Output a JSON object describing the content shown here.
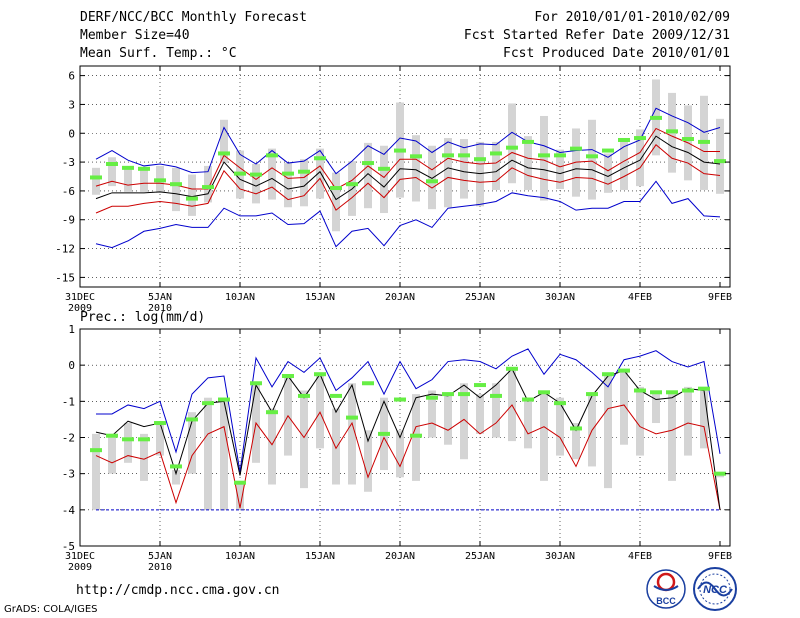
{
  "header": {
    "title": "DERF/NCC/BCC Monthly Forecast",
    "members": "Member Size=40",
    "variable1": "Mean Surf. Temp.: °C",
    "period": "For 2010/01/01-2010/02/09",
    "started": "Fcst Started Refer Date 2009/12/31",
    "produced": "Fcst Produced Date 2010/01/01"
  },
  "footer": {
    "url": "http://cmdp.ncc.cma.gov.cn",
    "credit": "GrADS: COLA/IGES",
    "logo_left": "BCC",
    "logo_right": "NCC"
  },
  "colors": {
    "max": "#0000cc",
    "p75": "#cc0000",
    "median": "#000000",
    "ensemble_box": "#d4d4d4",
    "observed": "#66ee44"
  },
  "chart_data": [
    {
      "type": "line",
      "title": "Mean Surf. Temp.: °C",
      "x_tick_labels": [
        "31DEC",
        "5JAN",
        "10JAN",
        "15JAN",
        "20JAN",
        "25JAN",
        "30JAN",
        "4FEB",
        "9FEB"
      ],
      "x_tick_sublabels": [
        "2009",
        "2010",
        "",
        "",
        "",
        "",
        "",
        "",
        ""
      ],
      "x_tick_index": [
        0,
        5,
        10,
        15,
        20,
        25,
        30,
        35,
        40
      ],
      "ylim": [
        -16,
        7
      ],
      "yticks": [
        6,
        3,
        0,
        -3,
        -6,
        -9,
        -12,
        -15
      ],
      "x": [
        1,
        2,
        3,
        4,
        5,
        6,
        7,
        8,
        9,
        10,
        11,
        12,
        13,
        14,
        15,
        16,
        17,
        18,
        19,
        20,
        21,
        22,
        23,
        24,
        25,
        26,
        27,
        28,
        29,
        30,
        31,
        32,
        33,
        34,
        35,
        36,
        37,
        38,
        39,
        40
      ],
      "series": [
        {
          "name": "max",
          "values": [
            -2.7,
            -1.8,
            -2.8,
            -3.4,
            -3.2,
            -3.5,
            -4.1,
            -4.0,
            0.6,
            -2.2,
            -3.2,
            -1.8,
            -3.1,
            -2.9,
            -1.8,
            -4.2,
            -2.9,
            -1.3,
            -2.2,
            -0.5,
            -0.8,
            -2.0,
            -0.9,
            -1.5,
            -1.1,
            -1.2,
            0.1,
            -0.9,
            -1.3,
            -2.0,
            -1.8,
            -1.7,
            -2.5,
            -1.4,
            -0.7,
            2.6,
            1.8,
            1.1,
            0.1,
            0.6
          ]
        },
        {
          "name": "p75",
          "values": [
            -5.5,
            -5.0,
            -5.4,
            -5.2,
            -5.2,
            -5.4,
            -5.8,
            -5.8,
            -2.3,
            -3.6,
            -4.8,
            -3.6,
            -4.7,
            -4.6,
            -3.4,
            -5.8,
            -4.9,
            -3.4,
            -4.6,
            -2.7,
            -2.7,
            -3.8,
            -2.6,
            -3.0,
            -3.2,
            -3.1,
            -2.0,
            -2.6,
            -2.8,
            -3.5,
            -3.0,
            -2.9,
            -3.9,
            -2.9,
            -2.0,
            0.5,
            -0.3,
            -1.0,
            -1.9,
            -1.9
          ]
        },
        {
          "name": "median",
          "values": [
            -6.8,
            -6.2,
            -6.2,
            -6.2,
            -6.1,
            -6.3,
            -6.6,
            -6.3,
            -3.0,
            -4.8,
            -5.5,
            -4.7,
            -5.8,
            -5.5,
            -4.0,
            -6.9,
            -5.8,
            -4.2,
            -5.6,
            -3.7,
            -3.8,
            -4.7,
            -3.6,
            -4.0,
            -4.2,
            -4.0,
            -2.8,
            -3.6,
            -3.8,
            -4.2,
            -3.7,
            -3.8,
            -4.5,
            -3.6,
            -2.8,
            -0.3,
            -1.4,
            -2.0,
            -3.0,
            -3.2
          ]
        },
        {
          "name": "p25",
          "values": [
            -8.3,
            -7.6,
            -7.6,
            -7.3,
            -7.1,
            -7.3,
            -7.6,
            -7.3,
            -3.9,
            -5.8,
            -6.3,
            -5.6,
            -6.9,
            -6.5,
            -4.7,
            -8.0,
            -6.7,
            -5.2,
            -6.7,
            -4.8,
            -4.6,
            -5.7,
            -4.6,
            -4.9,
            -5.1,
            -5.0,
            -3.6,
            -4.4,
            -4.8,
            -5.1,
            -4.6,
            -4.7,
            -5.3,
            -4.5,
            -3.6,
            -1.2,
            -2.6,
            -3.1,
            -4.2,
            -4.4
          ]
        },
        {
          "name": "min",
          "values": [
            -11.5,
            -11.9,
            -11.2,
            -10.2,
            -9.9,
            -9.5,
            -9.8,
            -9.8,
            -7.8,
            -8.6,
            -8.6,
            -8.3,
            -9.5,
            -9.4,
            -8.1,
            -11.8,
            -10.2,
            -9.9,
            -11.7,
            -9.6,
            -9.0,
            -9.8,
            -7.8,
            -7.6,
            -7.4,
            -7.1,
            -6.2,
            -6.5,
            -6.7,
            -7.1,
            -8.0,
            -7.8,
            -7.8,
            -7.1,
            -7.1,
            -5.0,
            -7.3,
            -6.8,
            -8.6,
            -8.7
          ]
        },
        {
          "name": "box_high",
          "values": [
            -3.6,
            -2.5,
            -3.7,
            -3.6,
            -3.4,
            -3.6,
            -4.3,
            -3.4,
            1.4,
            -1.8,
            -3.2,
            -1.6,
            -3.1,
            -2.7,
            -1.6,
            -4.1,
            -2.9,
            -1.0,
            -1.3,
            3.2,
            -0.2,
            -1.3,
            -0.5,
            -0.6,
            -0.9,
            -0.9,
            3.1,
            -0.3,
            1.8,
            -1.7,
            0.5,
            1.4,
            -2.1,
            -0.6,
            0.4,
            5.6,
            4.2,
            2.9,
            3.9,
            1.5
          ]
        },
        {
          "name": "box_low",
          "values": [
            -6.4,
            -5.5,
            -6.1,
            -6.1,
            -6.2,
            -8.1,
            -8.6,
            -7.2,
            -3.1,
            -6.8,
            -7.3,
            -6.9,
            -7.7,
            -7.6,
            -6.8,
            -10.2,
            -8.6,
            -7.8,
            -8.3,
            -6.7,
            -7.1,
            -7.9,
            -7.7,
            -6.8,
            -7.6,
            -5.9,
            -5.2,
            -5.9,
            -7.0,
            -5.8,
            -6.6,
            -6.9,
            -6.2,
            -5.9,
            -5.5,
            -2.3,
            -4.1,
            -4.9,
            -5.9,
            -6.3
          ]
        },
        {
          "name": "observed",
          "values": [
            -4.6,
            -3.2,
            -3.6,
            -3.7,
            -4.9,
            -5.3,
            -6.8,
            -5.6,
            -2.1,
            -4.2,
            -4.3,
            -2.3,
            -4.2,
            -4.0,
            -2.6,
            -5.7,
            -5.3,
            -3.1,
            -3.7,
            -1.8,
            -2.4,
            -5.0,
            -2.3,
            -2.3,
            -2.7,
            -2.1,
            -1.5,
            -0.9,
            -2.3,
            -2.3,
            -1.6,
            -2.4,
            -1.8,
            -0.7,
            -0.5,
            1.6,
            0.2,
            -0.6,
            -0.9,
            -2.9
          ]
        }
      ]
    },
    {
      "type": "line",
      "title": "Prec.: log(mm/d)",
      "x_tick_labels": [
        "31DEC",
        "5JAN",
        "10JAN",
        "15JAN",
        "20JAN",
        "25JAN",
        "30JAN",
        "4FEB",
        "9FEB"
      ],
      "x_tick_sublabels": [
        "2009",
        "2010",
        "",
        "",
        "",
        "",
        "",
        "",
        ""
      ],
      "x_tick_index": [
        0,
        5,
        10,
        15,
        20,
        25,
        30,
        35,
        40
      ],
      "ylim": [
        -5,
        1
      ],
      "yticks": [
        1,
        0,
        -1,
        -2,
        -3,
        -4,
        -5
      ],
      "x": [
        1,
        2,
        3,
        4,
        5,
        6,
        7,
        8,
        9,
        10,
        11,
        12,
        13,
        14,
        15,
        16,
        17,
        18,
        19,
        20,
        21,
        22,
        23,
        24,
        25,
        26,
        27,
        28,
        29,
        30,
        31,
        32,
        33,
        34,
        35,
        36,
        37,
        38,
        39,
        40
      ],
      "series": [
        {
          "name": "max",
          "values": [
            -1.35,
            -1.35,
            -1.1,
            -1.2,
            -1.0,
            -2.4,
            -0.8,
            -0.35,
            -0.3,
            -2.95,
            0.2,
            -0.6,
            0.1,
            -0.2,
            0.2,
            -0.7,
            -0.35,
            0.1,
            -0.8,
            0.1,
            -0.65,
            -0.4,
            0.1,
            0.15,
            0.1,
            -0.1,
            0.25,
            0.45,
            -0.25,
            0.3,
            0.15,
            -0.2,
            -0.6,
            0.15,
            0.25,
            0.4,
            0.1,
            -0.05,
            0.1,
            -2.45
          ]
        },
        {
          "name": "median",
          "values": [
            -1.85,
            -1.95,
            -1.55,
            -1.7,
            -1.6,
            -3.0,
            -1.55,
            -1.05,
            -1.0,
            -3.05,
            -0.55,
            -1.3,
            -0.3,
            -0.9,
            -0.25,
            -1.3,
            -0.55,
            -2.1,
            -1.0,
            -2.0,
            -0.9,
            -0.8,
            -0.85,
            -0.55,
            -0.9,
            -0.55,
            -0.1,
            -1.0,
            -0.75,
            -1.05,
            -1.8,
            -0.85,
            -0.3,
            -0.15,
            -0.7,
            -0.95,
            -0.9,
            -0.65,
            -0.7,
            -4.0
          ]
        },
        {
          "name": "p25",
          "values": [
            -2.5,
            -2.7,
            -2.5,
            -2.6,
            -2.4,
            -3.8,
            -2.5,
            -1.9,
            -1.7,
            -3.95,
            -1.6,
            -2.2,
            -1.4,
            -2.0,
            -1.3,
            -2.3,
            -1.6,
            -3.1,
            -2.0,
            -2.8,
            -1.7,
            -1.6,
            -1.8,
            -1.5,
            -1.9,
            -1.6,
            -1.1,
            -1.9,
            -1.7,
            -2.0,
            -2.8,
            -1.8,
            -1.2,
            -1.1,
            -1.7,
            -1.9,
            -1.8,
            -1.6,
            -1.7,
            -4.0
          ]
        },
        {
          "name": "box_high",
          "values": [
            -1.9,
            -2.0,
            -1.6,
            -1.9,
            -1.6,
            -2.9,
            -1.3,
            -0.9,
            -0.9,
            -3.3,
            -0.5,
            -1.2,
            -0.3,
            -0.7,
            -0.2,
            -1.2,
            -0.5,
            -1.8,
            -0.9,
            -1.8,
            -0.8,
            -0.7,
            -0.8,
            -0.5,
            -0.8,
            -0.5,
            -0.1,
            -0.9,
            -0.7,
            -0.9,
            -1.6,
            -0.8,
            -0.3,
            -0.2,
            -0.6,
            -0.8,
            -0.8,
            -0.6,
            -0.6,
            -3.0
          ]
        },
        {
          "name": "box_low",
          "values": [
            -4.0,
            -3.0,
            -2.7,
            -3.2,
            -2.5,
            -3.3,
            -3.0,
            -4.0,
            -4.0,
            -4.0,
            -2.7,
            -3.3,
            -2.5,
            -3.4,
            -2.3,
            -3.3,
            -3.3,
            -3.5,
            -2.9,
            -3.1,
            -3.2,
            -2.0,
            -2.2,
            -2.6,
            -1.9,
            -2.0,
            -2.1,
            -2.3,
            -3.2,
            -2.5,
            -2.6,
            -2.8,
            -3.4,
            -2.2,
            -2.5,
            -1.6,
            -3.2,
            -2.5,
            -2.3,
            -3.1
          ]
        },
        {
          "name": "observed",
          "values": [
            -2.35,
            -1.95,
            -2.05,
            -2.05,
            -1.6,
            -2.8,
            -1.5,
            -1.05,
            -0.95,
            -3.25,
            -0.5,
            -1.3,
            -0.3,
            -0.85,
            -0.25,
            -0.85,
            -1.45,
            -0.5,
            -1.9,
            -0.95,
            -1.95,
            -0.9,
            -0.8,
            -0.8,
            -0.55,
            -0.85,
            -0.1,
            -0.95,
            -0.75,
            -1.05,
            -1.75,
            -0.8,
            -0.25,
            -0.15,
            -0.7,
            -0.75,
            -0.75,
            -0.7,
            -0.65,
            -3.0
          ]
        }
      ]
    }
  ]
}
